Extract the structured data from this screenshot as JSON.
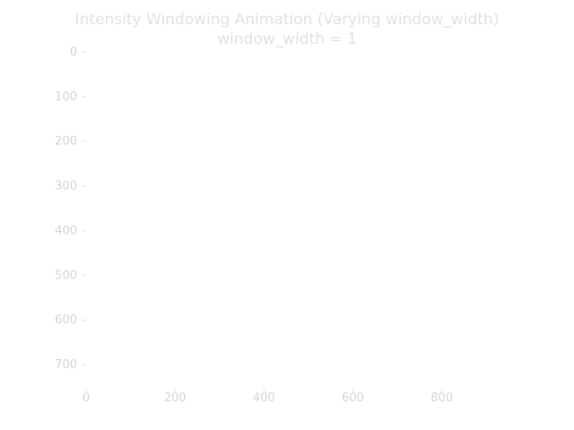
{
  "chart_data": {
    "type": "heatmap",
    "title": "Intensity Windowing Animation (Varying window_width)",
    "subtitle": "window_width = 1",
    "xlabel": "",
    "ylabel": "",
    "xlim": [
      0,
      940
    ],
    "ylim": [
      0,
      750
    ],
    "y_inverted": true,
    "x_ticks": [
      "0",
      "200",
      "400",
      "600",
      "800"
    ],
    "y_ticks": [
      "0",
      "100",
      "200",
      "300",
      "400",
      "500",
      "600",
      "700"
    ],
    "grid": false,
    "image_intensity": "uniform white (all pixels saturated at window_width = 1)"
  }
}
